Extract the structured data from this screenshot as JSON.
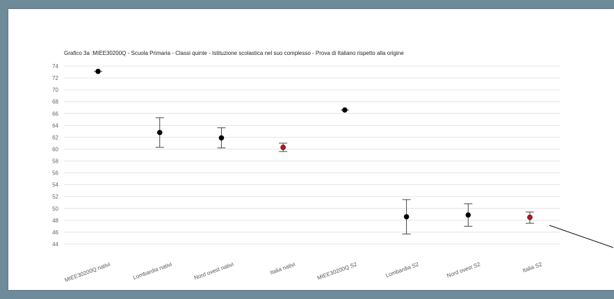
{
  "chart_data": {
    "type": "scatter",
    "title": "Grafico 3a :MIEE30200Q - Scuola Primaria - Classi quinte - Istituzione scolastica nel suo complesso - Prova di Italiano rispetto alla  origine",
    "xlabel": "",
    "ylabel": "",
    "ylim": [
      44,
      74
    ],
    "yticks": [
      44,
      46,
      48,
      50,
      52,
      54,
      56,
      58,
      60,
      62,
      64,
      66,
      68,
      70,
      72,
      74
    ],
    "grid": true,
    "categories": [
      "MIEE30200Q nativi",
      "Lombardia nativi",
      "Nord ovest nativi",
      "Italia nativi",
      "MIEE30200Q S2",
      "Lombardia S2",
      "Nord ovest S2",
      "Italia S2"
    ],
    "points": [
      {
        "value": 73.1,
        "low": 73.1,
        "high": 73.1,
        "color": "#000000"
      },
      {
        "value": 62.8,
        "low": 60.3,
        "high": 65.3,
        "color": "#000000"
      },
      {
        "value": 61.9,
        "low": 60.2,
        "high": 63.6,
        "color": "#000000"
      },
      {
        "value": 60.3,
        "low": 59.6,
        "high": 61.0,
        "color": "#c0141c"
      },
      {
        "value": 66.6,
        "low": 66.6,
        "high": 66.6,
        "color": "#000000"
      },
      {
        "value": 48.6,
        "low": 45.7,
        "high": 51.5,
        "color": "#000000"
      },
      {
        "value": 48.9,
        "low": 47.0,
        "high": 50.8,
        "color": "#000000"
      },
      {
        "value": 48.5,
        "low": 47.5,
        "high": 49.4,
        "color": "#c0141c"
      }
    ]
  }
}
